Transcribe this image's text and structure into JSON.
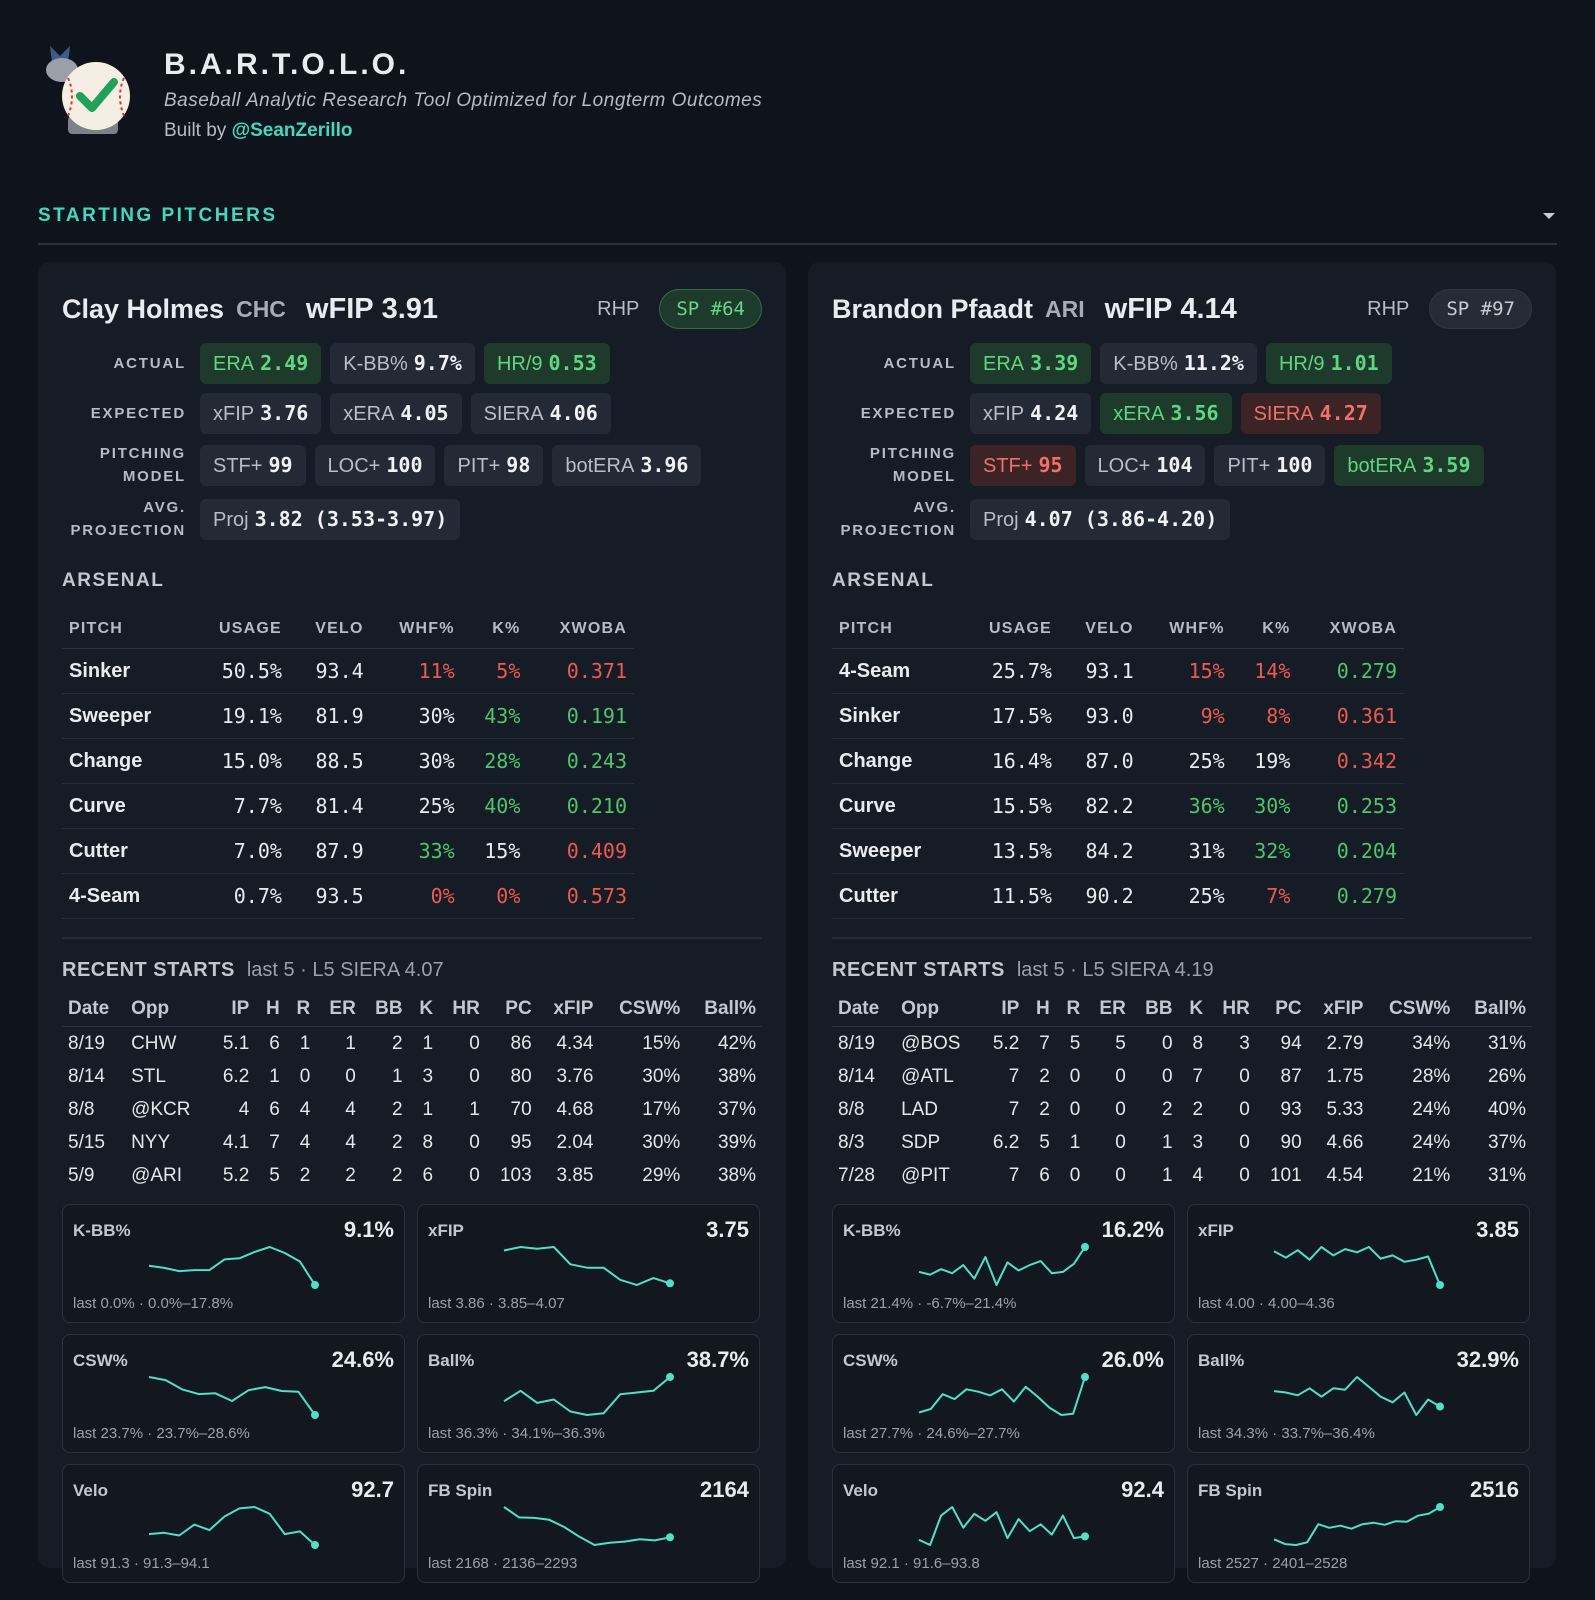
{
  "header": {
    "title": "B.A.R.T.O.L.O.",
    "subtitle": "Baseball Analytic Research Tool Optimized for Longterm Outcomes",
    "built_by": "Built by",
    "handle": "@SeanZerillo"
  },
  "section_title": "STARTING PITCHERS",
  "pitchers": [
    {
      "name": "Clay Holmes",
      "team": "CHC",
      "wfip_label": "wFIP",
      "wfip": "3.91",
      "hand": "RHP",
      "rank": "SP #64",
      "rank_tone": "good",
      "metric_rows": [
        {
          "label": "ACTUAL",
          "chips": [
            {
              "label": "ERA",
              "value": "2.49",
              "tone": "good"
            },
            {
              "label": "K-BB%",
              "value": "9.7%",
              "tone": "plain"
            },
            {
              "label": "HR/9",
              "value": "0.53",
              "tone": "good"
            }
          ]
        },
        {
          "label": "EXPECTED",
          "chips": [
            {
              "label": "xFIP",
              "value": "3.76",
              "tone": "plain"
            },
            {
              "label": "xERA",
              "value": "4.05",
              "tone": "plain"
            },
            {
              "label": "SIERA",
              "value": "4.06",
              "tone": "plain"
            }
          ]
        },
        {
          "label": "PITCHING MODEL",
          "chips": [
            {
              "label": "STF+",
              "value": "99",
              "tone": "plain"
            },
            {
              "label": "LOC+",
              "value": "100",
              "tone": "plain"
            },
            {
              "label": "PIT+",
              "value": "98",
              "tone": "plain"
            },
            {
              "label": "botERA",
              "value": "3.96",
              "tone": "plain"
            }
          ]
        },
        {
          "label": "AVG. PROJECTION",
          "chips": [
            {
              "label": "Proj",
              "value": "3.82 (3.53-3.97)",
              "tone": "plain"
            }
          ]
        }
      ],
      "arsenal_title": "ARSENAL",
      "arsenal_columns": [
        "PITCH",
        "USAGE",
        "VELO",
        "WHF%",
        "K%",
        "XWOBA"
      ],
      "arsenal_rows": [
        {
          "cells": [
            "Sinker",
            "50.5%",
            "93.4",
            "11%",
            "5%",
            "0.371"
          ],
          "tones": [
            "plain",
            "plain",
            "plain",
            "bad",
            "bad",
            "bad"
          ]
        },
        {
          "cells": [
            "Sweeper",
            "19.1%",
            "81.9",
            "30%",
            "43%",
            "0.191"
          ],
          "tones": [
            "plain",
            "plain",
            "plain",
            "plain",
            "good",
            "good"
          ]
        },
        {
          "cells": [
            "Change",
            "15.0%",
            "88.5",
            "30%",
            "28%",
            "0.243"
          ],
          "tones": [
            "plain",
            "plain",
            "plain",
            "plain",
            "good",
            "good"
          ]
        },
        {
          "cells": [
            "Curve",
            "7.7%",
            "81.4",
            "25%",
            "40%",
            "0.210"
          ],
          "tones": [
            "plain",
            "plain",
            "plain",
            "plain",
            "good",
            "good"
          ]
        },
        {
          "cells": [
            "Cutter",
            "7.0%",
            "87.9",
            "33%",
            "15%",
            "0.409"
          ],
          "tones": [
            "plain",
            "plain",
            "plain",
            "good",
            "plain",
            "bad"
          ]
        },
        {
          "cells": [
            "4-Seam",
            "0.7%",
            "93.5",
            "0%",
            "0%",
            "0.573"
          ],
          "tones": [
            "plain",
            "plain",
            "plain",
            "bad",
            "bad",
            "bad"
          ]
        }
      ],
      "recent_title": "RECENT STARTS",
      "recent_subtitle": "last 5 · L5 SIERA 4.07",
      "recent_columns": [
        "Date",
        "Opp",
        "IP",
        "H",
        "R",
        "ER",
        "BB",
        "K",
        "HR",
        "PC",
        "xFIP",
        "CSW%",
        "Ball%"
      ],
      "recent_rows": [
        [
          "8/19",
          "CHW",
          "5.1",
          "6",
          "1",
          "1",
          "2",
          "1",
          "0",
          "86",
          "4.34",
          "15%",
          "42%"
        ],
        [
          "8/14",
          "STL",
          "6.2",
          "1",
          "0",
          "0",
          "1",
          "3",
          "0",
          "80",
          "3.76",
          "30%",
          "38%"
        ],
        [
          "8/8",
          "@KCR",
          "4",
          "6",
          "4",
          "4",
          "2",
          "1",
          "1",
          "70",
          "4.68",
          "17%",
          "37%"
        ],
        [
          "5/15",
          "NYY",
          "4.1",
          "7",
          "4",
          "4",
          "2",
          "8",
          "0",
          "95",
          "2.04",
          "30%",
          "39%"
        ],
        [
          "5/9",
          "@ARI",
          "5.2",
          "5",
          "2",
          "2",
          "2",
          "6",
          "0",
          "103",
          "3.85",
          "29%",
          "38%"
        ]
      ],
      "sparks": [
        {
          "label": "K-BB%",
          "value": "9.1%",
          "footer": "last 0.0% · 0.0%–17.8%",
          "values": [
            9,
            8,
            6.5,
            7,
            7,
            12,
            12.5,
            15.5,
            17.8,
            15,
            11,
            0
          ]
        },
        {
          "label": "xFIP",
          "value": "3.75",
          "footer": "last 3.86 · 3.85–4.07",
          "values": [
            4.05,
            4.07,
            4.06,
            4.07,
            3.97,
            3.95,
            3.95,
            3.88,
            3.85,
            3.89,
            3.86
          ]
        },
        {
          "label": "CSW%",
          "value": "24.6%",
          "footer": "last 23.7% · 23.7%–28.6%",
          "values": [
            28.6,
            28.2,
            27.0,
            26.4,
            26.5,
            25.5,
            26.9,
            27.3,
            26.8,
            26.7,
            23.7
          ]
        },
        {
          "label": "Ball%",
          "value": "38.7%",
          "footer": "last 36.3% · 34.1%–36.3%",
          "values": [
            34.9,
            35.5,
            34.8,
            35.0,
            34.3,
            34.1,
            34.2,
            35.3,
            35.4,
            35.5,
            36.3
          ]
        },
        {
          "label": "Velo",
          "value": "92.7",
          "footer": "last 91.3 · 91.3–94.1",
          "values": [
            92.1,
            92.2,
            92.0,
            92.8,
            92.4,
            93.4,
            94.0,
            94.1,
            93.6,
            92.1,
            92.3,
            91.3
          ]
        },
        {
          "label": "FB Spin",
          "value": "2164",
          "footer": "last 2168 · 2136–2293",
          "values": [
            2293,
            2250,
            2248,
            2240,
            2210,
            2170,
            2136,
            2145,
            2150,
            2160,
            2155,
            2168
          ]
        }
      ]
    },
    {
      "name": "Brandon Pfaadt",
      "team": "ARI",
      "wfip_label": "wFIP",
      "wfip": "4.14",
      "hand": "RHP",
      "rank": "SP #97",
      "rank_tone": "plain",
      "metric_rows": [
        {
          "label": "ACTUAL",
          "chips": [
            {
              "label": "ERA",
              "value": "3.39",
              "tone": "good"
            },
            {
              "label": "K-BB%",
              "value": "11.2%",
              "tone": "plain"
            },
            {
              "label": "HR/9",
              "value": "1.01",
              "tone": "good"
            }
          ]
        },
        {
          "label": "EXPECTED",
          "chips": [
            {
              "label": "xFIP",
              "value": "4.24",
              "tone": "plain"
            },
            {
              "label": "xERA",
              "value": "3.56",
              "tone": "good"
            },
            {
              "label": "SIERA",
              "value": "4.27",
              "tone": "bad"
            }
          ]
        },
        {
          "label": "PITCHING MODEL",
          "chips": [
            {
              "label": "STF+",
              "value": "95",
              "tone": "bad"
            },
            {
              "label": "LOC+",
              "value": "104",
              "tone": "plain"
            },
            {
              "label": "PIT+",
              "value": "100",
              "tone": "plain"
            },
            {
              "label": "botERA",
              "value": "3.59",
              "tone": "good"
            }
          ]
        },
        {
          "label": "AVG. PROJECTION",
          "chips": [
            {
              "label": "Proj",
              "value": "4.07 (3.86-4.20)",
              "tone": "plain"
            }
          ]
        }
      ],
      "arsenal_title": "ARSENAL",
      "arsenal_columns": [
        "PITCH",
        "USAGE",
        "VELO",
        "WHF%",
        "K%",
        "XWOBA"
      ],
      "arsenal_rows": [
        {
          "cells": [
            "4-Seam",
            "25.7%",
            "93.1",
            "15%",
            "14%",
            "0.279"
          ],
          "tones": [
            "plain",
            "plain",
            "plain",
            "bad",
            "bad",
            "good"
          ]
        },
        {
          "cells": [
            "Sinker",
            "17.5%",
            "93.0",
            "9%",
            "8%",
            "0.361"
          ],
          "tones": [
            "plain",
            "plain",
            "plain",
            "bad",
            "bad",
            "bad"
          ]
        },
        {
          "cells": [
            "Change",
            "16.4%",
            "87.0",
            "25%",
            "19%",
            "0.342"
          ],
          "tones": [
            "plain",
            "plain",
            "plain",
            "plain",
            "plain",
            "bad"
          ]
        },
        {
          "cells": [
            "Curve",
            "15.5%",
            "82.2",
            "36%",
            "30%",
            "0.253"
          ],
          "tones": [
            "plain",
            "plain",
            "plain",
            "good",
            "good",
            "good"
          ]
        },
        {
          "cells": [
            "Sweeper",
            "13.5%",
            "84.2",
            "31%",
            "32%",
            "0.204"
          ],
          "tones": [
            "plain",
            "plain",
            "plain",
            "plain",
            "good",
            "good"
          ]
        },
        {
          "cells": [
            "Cutter",
            "11.5%",
            "90.2",
            "25%",
            "7%",
            "0.279"
          ],
          "tones": [
            "plain",
            "plain",
            "plain",
            "plain",
            "bad",
            "good"
          ]
        }
      ],
      "recent_title": "RECENT STARTS",
      "recent_subtitle": "last 5 · L5 SIERA 4.19",
      "recent_columns": [
        "Date",
        "Opp",
        "IP",
        "H",
        "R",
        "ER",
        "BB",
        "K",
        "HR",
        "PC",
        "xFIP",
        "CSW%",
        "Ball%"
      ],
      "recent_rows": [
        [
          "8/19",
          "@BOS",
          "5.2",
          "7",
          "5",
          "5",
          "0",
          "8",
          "3",
          "94",
          "2.79",
          "34%",
          "31%"
        ],
        [
          "8/14",
          "@ATL",
          "7",
          "2",
          "0",
          "0",
          "0",
          "7",
          "0",
          "87",
          "1.75",
          "28%",
          "26%"
        ],
        [
          "8/8",
          "LAD",
          "7",
          "2",
          "0",
          "0",
          "2",
          "2",
          "0",
          "93",
          "5.33",
          "24%",
          "40%"
        ],
        [
          "8/3",
          "SDP",
          "6.2",
          "5",
          "1",
          "0",
          "1",
          "3",
          "0",
          "90",
          "4.66",
          "24%",
          "37%"
        ],
        [
          "7/28",
          "@PIT",
          "7",
          "6",
          "0",
          "0",
          "1",
          "4",
          "0",
          "101",
          "4.54",
          "21%",
          "31%"
        ]
      ],
      "sparks": [
        {
          "label": "K-BB%",
          "value": "16.2%",
          "footer": "last 21.4% · -6.7%–21.4%",
          "values": [
            3,
            1,
            5,
            2,
            8,
            -2,
            14,
            -6.7,
            10,
            4,
            8,
            11,
            2,
            3,
            9,
            21.4
          ]
        },
        {
          "label": "xFIP",
          "value": "3.85",
          "footer": "last 4.00 · 4.00–4.36",
          "values": [
            4.32,
            4.26,
            4.33,
            4.24,
            4.36,
            4.28,
            4.34,
            4.31,
            4.36,
            4.25,
            4.28,
            4.22,
            4.24,
            4.27,
            4.0
          ]
        },
        {
          "label": "CSW%",
          "value": "26.0%",
          "footer": "last 27.7% · 24.6%–27.7%",
          "values": [
            24.8,
            25.1,
            26.3,
            25.9,
            26.7,
            26.5,
            26.2,
            26.7,
            25.7,
            26.9,
            26.1,
            25.2,
            24.6,
            24.7,
            27.7
          ]
        },
        {
          "label": "Ball%",
          "value": "32.9%",
          "footer": "last 34.3% · 33.7%–36.4%",
          "values": [
            35.4,
            35.3,
            35.1,
            35.6,
            35.0,
            35.6,
            35.5,
            36.4,
            35.7,
            35.0,
            34.6,
            35.3,
            33.7,
            34.8,
            34.3
          ]
        },
        {
          "label": "Velo",
          "value": "92.4",
          "footer": "last 92.1 · 91.6–93.8",
          "values": [
            91.9,
            91.6,
            93.3,
            93.8,
            92.6,
            93.4,
            93.0,
            93.5,
            92.0,
            93.1,
            92.4,
            92.8,
            92.2,
            93.3,
            92.0,
            92.1
          ]
        },
        {
          "label": "FB Spin",
          "value": "2516",
          "footer": "last 2527 · 2401–2528",
          "values": [
            2420,
            2404,
            2401,
            2410,
            2470,
            2458,
            2465,
            2455,
            2470,
            2475,
            2468,
            2480,
            2478,
            2498,
            2505,
            2527
          ]
        }
      ]
    }
  ]
}
